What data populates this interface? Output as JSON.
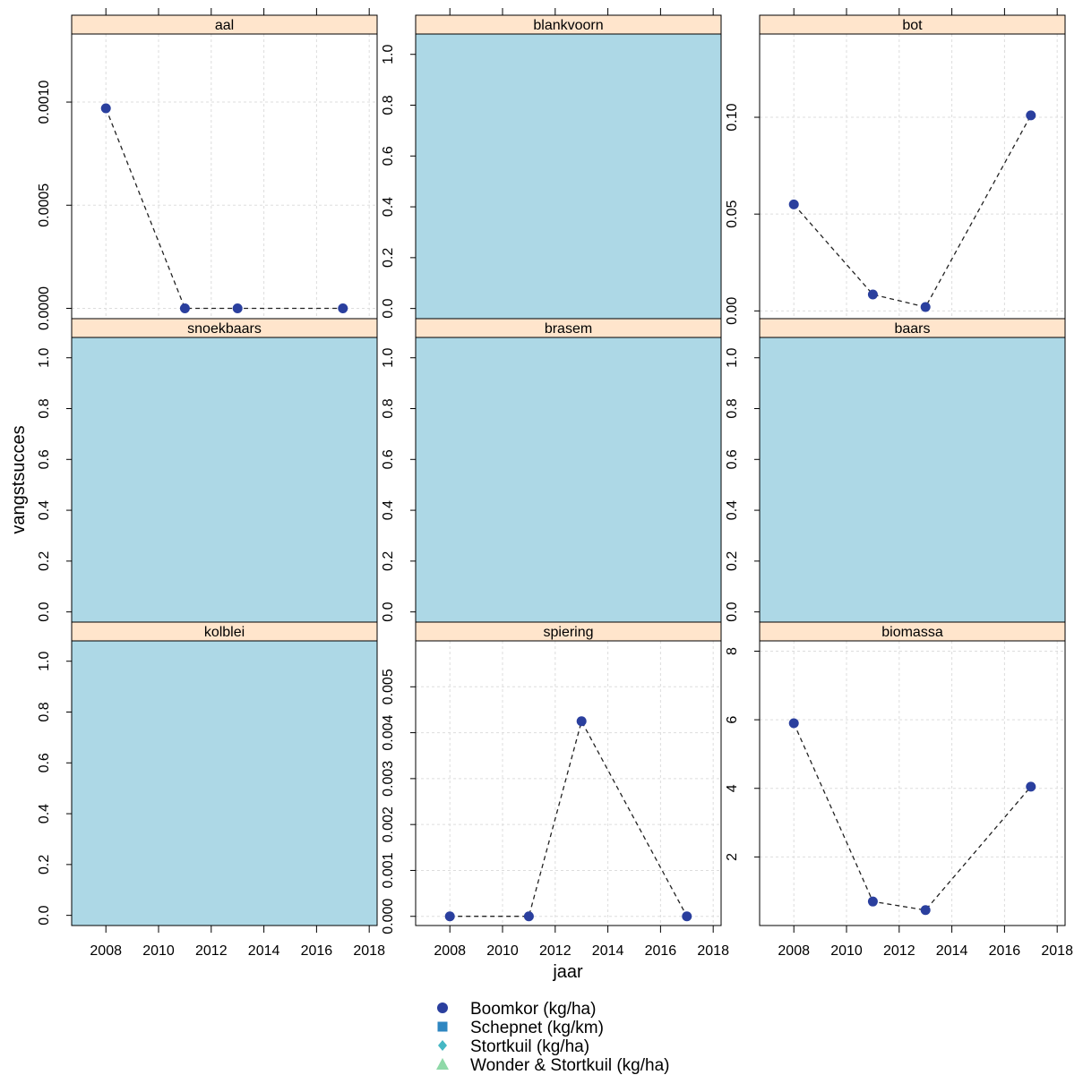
{
  "chart_data": {
    "type": "scatter",
    "xlabel": "jaar",
    "ylabel": "vangstsucces",
    "xlim": [
      2006.7,
      2018.3
    ],
    "xticks": [
      2008,
      2010,
      2012,
      2014,
      2016,
      2018
    ],
    "grid": true,
    "legend_position": "bottom",
    "colors": {
      "strip": "#FFE5CC",
      "empty_panel": "#ADD8E6",
      "marker": "#2A3F9E",
      "grid": "#DDDDDD"
    },
    "series": [
      {
        "name": "Boomkor (kg/ha)",
        "shape": "circle",
        "color": "#2A3F9E"
      },
      {
        "name": "Schepnet (kg/km)",
        "shape": "square",
        "color": "#2E86C1"
      },
      {
        "name": "Stortkuil (kg/ha)",
        "shape": "diamond",
        "color": "#45B7C4"
      },
      {
        "name": "Wonder & Stortkuil (kg/ha)",
        "shape": "triangle",
        "color": "#8FD9A8"
      }
    ],
    "panels": [
      {
        "name": "aal",
        "empty": false,
        "ylim": [
          -5e-05,
          0.00133
        ],
        "yticks": [
          0.0,
          0.0005,
          0.001
        ],
        "ytick_labels": [
          "0.0000",
          "0.0005",
          "0.0010"
        ],
        "points": [
          {
            "x": 2008,
            "y": 0.00097
          },
          {
            "x": 2011,
            "y": 0.0
          },
          {
            "x": 2013,
            "y": 0.0
          },
          {
            "x": 2017,
            "y": 0.0
          }
        ]
      },
      {
        "name": "blankvoorn",
        "empty": true,
        "ylim": [
          -0.04,
          1.08
        ],
        "yticks": [
          0.0,
          0.2,
          0.4,
          0.6,
          0.8,
          1.0
        ],
        "ytick_labels": [
          "0.0",
          "0.2",
          "0.4",
          "0.6",
          "0.8",
          "1.0"
        ],
        "points": []
      },
      {
        "name": "bot",
        "empty": false,
        "ylim": [
          -0.004,
          0.143
        ],
        "yticks": [
          0.0,
          0.05,
          0.1
        ],
        "ytick_labels": [
          "0.00",
          "0.05",
          "0.10"
        ],
        "points": [
          {
            "x": 2008,
            "y": 0.055
          },
          {
            "x": 2011,
            "y": 0.0085
          },
          {
            "x": 2013,
            "y": 0.002
          },
          {
            "x": 2017,
            "y": 0.101
          }
        ]
      },
      {
        "name": "snoekbaars",
        "empty": true,
        "ylim": [
          -0.04,
          1.08
        ],
        "yticks": [
          0.0,
          0.2,
          0.4,
          0.6,
          0.8,
          1.0
        ],
        "ytick_labels": [
          "0.0",
          "0.2",
          "0.4",
          "0.6",
          "0.8",
          "1.0"
        ],
        "points": []
      },
      {
        "name": "brasem",
        "empty": true,
        "ylim": [
          -0.04,
          1.08
        ],
        "yticks": [
          0.0,
          0.2,
          0.4,
          0.6,
          0.8,
          1.0
        ],
        "ytick_labels": [
          "0.0",
          "0.2",
          "0.4",
          "0.6",
          "0.8",
          "1.0"
        ],
        "points": []
      },
      {
        "name": "baars",
        "empty": true,
        "ylim": [
          -0.04,
          1.08
        ],
        "yticks": [
          0.0,
          0.2,
          0.4,
          0.6,
          0.8,
          1.0
        ],
        "ytick_labels": [
          "0.0",
          "0.2",
          "0.4",
          "0.6",
          "0.8",
          "1.0"
        ],
        "points": []
      },
      {
        "name": "kolblei",
        "empty": true,
        "ylim": [
          -0.04,
          1.08
        ],
        "yticks": [
          0.0,
          0.2,
          0.4,
          0.6,
          0.8,
          1.0
        ],
        "ytick_labels": [
          "0.0",
          "0.2",
          "0.4",
          "0.6",
          "0.8",
          "1.0"
        ],
        "points": []
      },
      {
        "name": "spiering",
        "empty": false,
        "ylim": [
          -0.0002,
          0.006
        ],
        "yticks": [
          0.0,
          0.001,
          0.002,
          0.003,
          0.004,
          0.005
        ],
        "ytick_labels": [
          "0.000",
          "0.001",
          "0.002",
          "0.003",
          "0.004",
          "0.005"
        ],
        "points": [
          {
            "x": 2008,
            "y": 0.0
          },
          {
            "x": 2011,
            "y": 0.0
          },
          {
            "x": 2013,
            "y": 0.00425
          },
          {
            "x": 2017,
            "y": 0.0
          }
        ]
      },
      {
        "name": "biomassa",
        "empty": false,
        "ylim": [
          0.0,
          8.3
        ],
        "yticks": [
          2,
          4,
          6,
          8
        ],
        "ytick_labels": [
          "2",
          "4",
          "6",
          "8"
        ],
        "points": [
          {
            "x": 2008,
            "y": 5.9
          },
          {
            "x": 2011,
            "y": 0.7
          },
          {
            "x": 2013,
            "y": 0.45
          },
          {
            "x": 2017,
            "y": 4.05
          }
        ]
      }
    ]
  }
}
